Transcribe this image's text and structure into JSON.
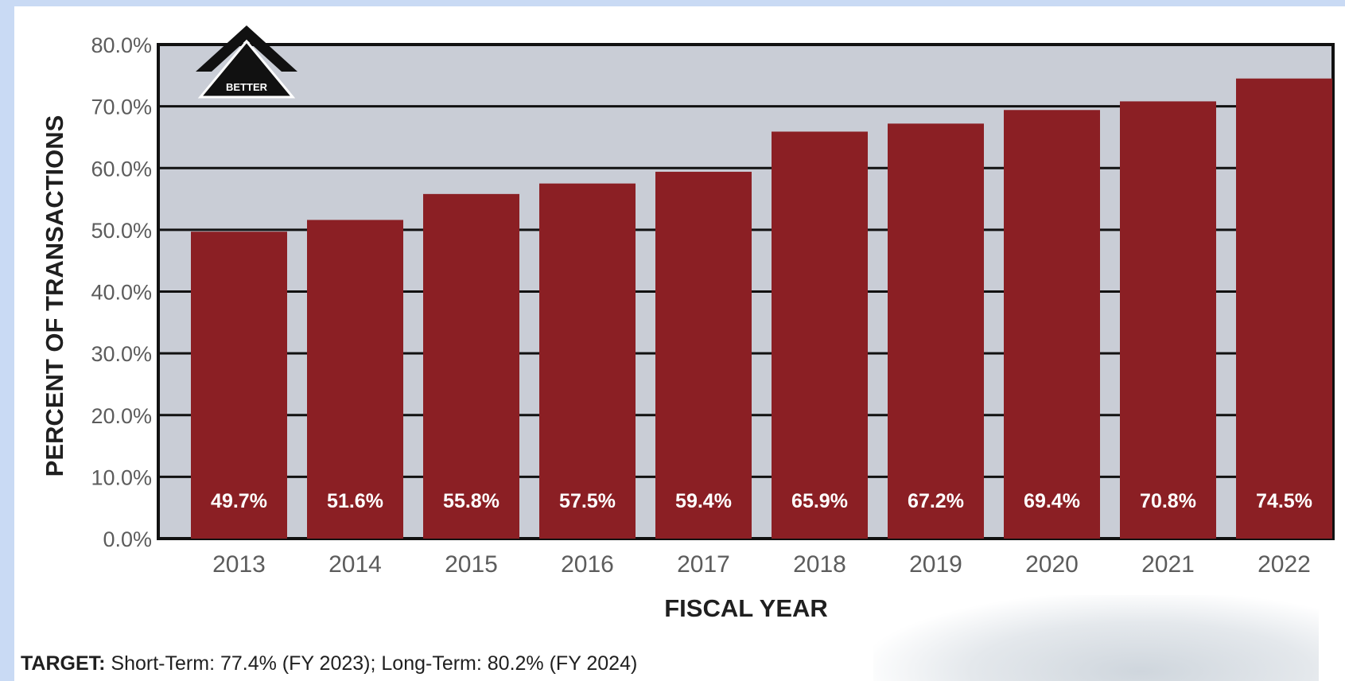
{
  "chart_data": {
    "type": "bar",
    "categories": [
      "2013",
      "2014",
      "2015",
      "2016",
      "2017",
      "2018",
      "2019",
      "2020",
      "2021",
      "2022"
    ],
    "values": [
      49.7,
      51.6,
      55.8,
      57.5,
      59.4,
      65.9,
      67.2,
      69.4,
      70.8,
      74.5
    ],
    "value_labels": [
      "49.7%",
      "51.6%",
      "55.8%",
      "57.5%",
      "59.4%",
      "65.9%",
      "67.2%",
      "69.4%",
      "70.8%",
      "74.5%"
    ],
    "xlabel": "FISCAL YEAR",
    "ylabel": "PERCENT OF TRANSACTIONS",
    "ylim": [
      0,
      80
    ],
    "yticks": [
      "0.0%",
      "10.0%",
      "20.0%",
      "30.0%",
      "40.0%",
      "50.0%",
      "60.0%",
      "70.0%",
      "80.0%"
    ],
    "grid": true,
    "annotation": "BETTER",
    "bar_color": "#8b1f24",
    "plot_background": "#c9cdd6"
  },
  "footnote": {
    "label": "TARGET:",
    "text": " Short-Term: 77.4% (FY 2023); Long-Term: 80.2% (FY 2024)"
  }
}
